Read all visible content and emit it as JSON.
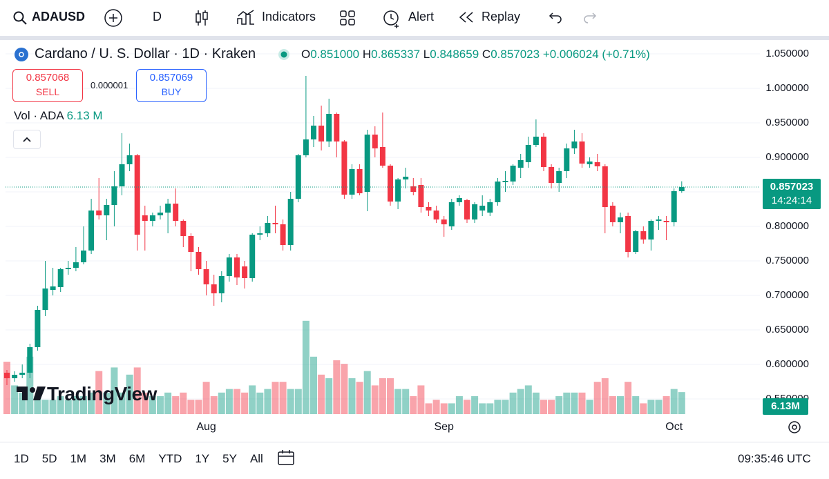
{
  "toolbar": {
    "symbol": "ADAUSD",
    "interval": "D",
    "indicators": "Indicators",
    "alert": "Alert",
    "replay": "Replay"
  },
  "legend": {
    "title": "Cardano / U. S. Dollar · 1D · Kraken",
    "open_label": "O",
    "open": "0.851000",
    "high_label": "H",
    "high": "0.865337",
    "low_label": "L",
    "low": "0.848659",
    "close_label": "C",
    "close": "0.857023",
    "change": "+0.006024 (+0.71%)"
  },
  "trade": {
    "sell_price": "0.857068",
    "sell": "SELL",
    "spread": "0.000001",
    "buy_price": "0.857069",
    "buy": "BUY"
  },
  "volume_legend": {
    "label": "Vol · ADA",
    "value": "6.13 M",
    "tag": "6.13M"
  },
  "countdown": "14:24:14",
  "watermark": "TradingView",
  "bottom_bar": {
    "ranges": [
      "1D",
      "5D",
      "1M",
      "3M",
      "6M",
      "YTD",
      "1Y",
      "5Y",
      "All"
    ],
    "time": "09:35:46 UTC"
  },
  "chart_data": {
    "type": "candlestick",
    "categories": [
      null,
      null,
      null,
      null,
      null,
      null,
      null,
      null,
      null,
      null,
      null,
      null,
      null,
      null,
      null,
      null,
      null,
      null,
      null,
      null,
      null,
      null,
      null,
      null,
      null,
      null,
      "Aug",
      null,
      null,
      null,
      null,
      null,
      null,
      null,
      null,
      null,
      null,
      null,
      null,
      null,
      null,
      null,
      null,
      null,
      null,
      null,
      null,
      null,
      null,
      null,
      null,
      null,
      null,
      null,
      null,
      null,
      null,
      "Sep",
      null,
      null,
      null,
      null,
      null,
      null,
      null,
      null,
      null,
      null,
      null,
      null,
      null,
      null,
      null,
      null,
      null,
      null,
      null,
      null,
      null,
      null,
      null,
      null,
      null,
      null,
      null,
      null,
      null,
      "Oct",
      null
    ],
    "open": [
      0.588,
      0.58,
      0.585,
      0.588,
      0.625,
      0.679,
      0.708,
      0.712,
      0.738,
      0.74,
      0.748,
      0.765,
      0.823,
      0.816,
      0.831,
      0.858,
      0.89,
      0.903,
      0.816,
      0.808,
      0.816,
      0.82,
      0.833,
      0.808,
      0.786,
      0.763,
      0.738,
      0.716,
      0.703,
      0.728,
      0.755,
      0.742,
      0.725,
      0.788,
      0.79,
      0.805,
      0.803,
      0.773,
      0.84,
      0.903,
      0.926,
      0.946,
      0.923,
      0.963,
      0.923,
      0.846,
      0.883,
      0.85,
      0.933,
      0.915,
      0.888,
      0.836,
      0.868,
      0.858,
      0.86,
      0.828,
      0.823,
      0.81,
      0.8,
      0.835,
      0.838,
      0.81,
      0.823,
      0.82,
      0.835,
      0.864,
      0.865,
      0.885,
      0.893,
      0.918,
      0.93,
      0.886,
      0.863,
      0.88,
      0.913,
      0.923,
      0.89,
      0.893,
      0.887,
      0.83,
      0.806,
      0.815,
      0.763,
      0.793,
      0.781,
      0.808,
      0.808,
      0.806,
      0.851
    ],
    "high": [
      0.592,
      0.59,
      0.6,
      0.63,
      0.685,
      0.75,
      0.74,
      0.74,
      0.75,
      0.77,
      0.8,
      0.84,
      0.87,
      0.84,
      0.88,
      0.935,
      0.92,
      0.905,
      0.83,
      0.82,
      0.83,
      0.84,
      0.855,
      0.81,
      0.79,
      0.77,
      0.75,
      0.73,
      0.735,
      0.76,
      0.76,
      0.75,
      0.79,
      0.8,
      0.815,
      0.83,
      0.81,
      0.85,
      0.905,
      1.018,
      0.96,
      0.975,
      0.985,
      0.965,
      0.925,
      0.89,
      0.89,
      0.94,
      0.945,
      0.965,
      0.89,
      0.87,
      0.885,
      0.87,
      0.87,
      0.835,
      0.83,
      0.815,
      0.84,
      0.845,
      0.84,
      0.835,
      0.845,
      0.84,
      0.87,
      0.88,
      0.89,
      0.905,
      0.93,
      0.955,
      0.935,
      0.89,
      0.885,
      0.92,
      0.94,
      0.935,
      0.9,
      0.905,
      0.89,
      0.835,
      0.82,
      0.82,
      0.795,
      0.8,
      0.81,
      0.815,
      0.815,
      0.855,
      0.865337
    ],
    "low": [
      0.57,
      0.575,
      0.58,
      0.58,
      0.62,
      0.67,
      0.7,
      0.705,
      0.73,
      0.735,
      0.745,
      0.76,
      0.81,
      0.78,
      0.8,
      0.845,
      0.88,
      0.765,
      0.765,
      0.8,
      0.81,
      0.79,
      0.8,
      0.77,
      0.735,
      0.73,
      0.7,
      0.685,
      0.69,
      0.72,
      0.715,
      0.71,
      0.72,
      0.78,
      0.785,
      0.79,
      0.765,
      0.765,
      0.835,
      0.9,
      0.915,
      0.91,
      0.915,
      0.9,
      0.84,
      0.84,
      0.845,
      0.822,
      0.9,
      0.885,
      0.83,
      0.825,
      0.855,
      0.845,
      0.82,
      0.815,
      0.805,
      0.785,
      0.795,
      0.83,
      0.805,
      0.805,
      0.815,
      0.815,
      0.83,
      0.85,
      0.86,
      0.87,
      0.885,
      0.915,
      0.88,
      0.855,
      0.85,
      0.87,
      0.905,
      0.885,
      0.885,
      0.88,
      0.79,
      0.8,
      0.79,
      0.755,
      0.76,
      0.775,
      0.765,
      0.795,
      0.78,
      0.8,
      0.848659
    ],
    "close": [
      0.58,
      0.585,
      0.588,
      0.625,
      0.679,
      0.71,
      0.713,
      0.738,
      0.74,
      0.748,
      0.765,
      0.823,
      0.816,
      0.831,
      0.858,
      0.89,
      0.903,
      0.788,
      0.808,
      0.816,
      0.82,
      0.833,
      0.808,
      0.786,
      0.763,
      0.738,
      0.716,
      0.703,
      0.728,
      0.755,
      0.726,
      0.725,
      0.788,
      0.79,
      0.805,
      0.803,
      0.773,
      0.84,
      0.903,
      0.926,
      0.946,
      0.923,
      0.963,
      0.923,
      0.846,
      0.883,
      0.848,
      0.933,
      0.913,
      0.888,
      0.836,
      0.868,
      0.872,
      0.85,
      0.828,
      0.823,
      0.81,
      0.803,
      0.835,
      0.841,
      0.81,
      0.832,
      0.83,
      0.835,
      0.865,
      0.866,
      0.888,
      0.896,
      0.918,
      0.93,
      0.886,
      0.863,
      0.88,
      0.913,
      0.923,
      0.891,
      0.894,
      0.887,
      0.828,
      0.806,
      0.813,
      0.763,
      0.793,
      0.781,
      0.808,
      0.81,
      0.806,
      0.851,
      0.857023
    ],
    "volume": [
      14.6,
      8,
      6,
      16,
      5,
      4,
      4,
      5,
      4,
      5,
      5,
      6,
      12,
      6,
      13,
      6,
      11,
      13,
      6,
      5,
      5,
      6,
      5,
      6,
      4,
      4,
      9,
      5,
      6,
      7,
      7,
      6,
      8,
      6,
      7,
      9,
      9,
      7,
      7,
      26,
      16,
      11,
      10,
      15,
      14,
      10,
      9,
      12,
      8,
      10,
      10,
      7,
      7,
      5,
      8,
      3,
      4,
      3,
      3,
      5,
      4,
      5,
      3,
      3,
      4,
      4,
      6,
      7,
      8,
      6,
      4,
      4,
      5,
      6,
      6,
      6,
      4,
      9,
      10,
      5,
      5,
      9,
      5,
      3,
      4,
      4,
      5,
      7,
      6.13
    ],
    "up_color": "#089981",
    "down_color": "#f23645",
    "ylim": [
      0.528,
      1.07
    ],
    "yticks": [
      {
        "value": 0.55,
        "label": "0.550000"
      },
      {
        "value": 0.6,
        "label": "0.600000"
      },
      {
        "value": 0.65,
        "label": "0.650000"
      },
      {
        "value": 0.7,
        "label": "0.700000"
      },
      {
        "value": 0.75,
        "label": "0.750000"
      },
      {
        "value": 0.8,
        "label": "0.800000"
      },
      {
        "value": 0.85,
        "label": "0.850000"
      },
      {
        "value": 0.9,
        "label": "0.900000"
      },
      {
        "value": 0.95,
        "label": "0.950000"
      },
      {
        "value": 1.0,
        "label": "1.000000"
      },
      {
        "value": 1.05,
        "label": "1.050000"
      }
    ],
    "grid": true
  }
}
